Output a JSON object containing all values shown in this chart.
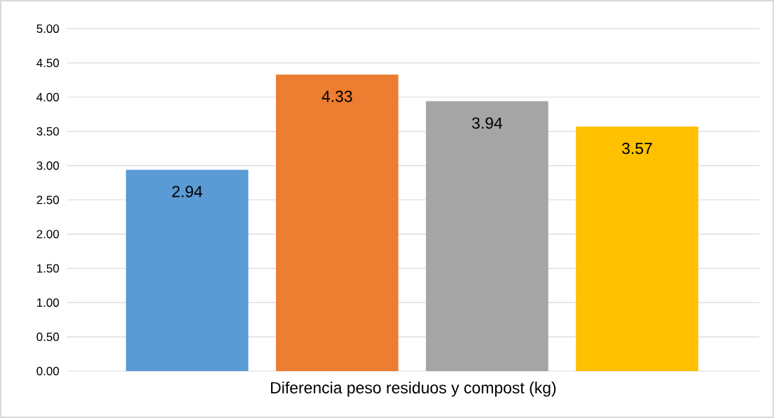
{
  "chart_data": {
    "type": "bar",
    "xlabel": "Diferencia peso residuos y compost (kg)",
    "categories": [
      null,
      null,
      null,
      null
    ],
    "values": [
      2.94,
      4.33,
      3.94,
      3.57
    ],
    "colors": [
      "#5b9bd5",
      "#ed7d31",
      "#a5a5a5",
      "#ffc000"
    ],
    "ylim": [
      0,
      5
    ],
    "yticks": [
      {
        "value": 0,
        "label": "0.00"
      },
      {
        "value": 0.5,
        "label": "0.50"
      },
      {
        "value": 1,
        "label": "1.00"
      },
      {
        "value": 1.5,
        "label": "1.50"
      },
      {
        "value": 2,
        "label": "2.00"
      },
      {
        "value": 2.5,
        "label": "2.50"
      },
      {
        "value": 3,
        "label": "3.00"
      },
      {
        "value": 3.5,
        "label": "3.50"
      },
      {
        "value": 4,
        "label": "4.00"
      },
      {
        "value": 4.5,
        "label": "4.50"
      },
      {
        "value": 5,
        "label": "5.00"
      }
    ],
    "grid": "y",
    "data_labels": true
  }
}
